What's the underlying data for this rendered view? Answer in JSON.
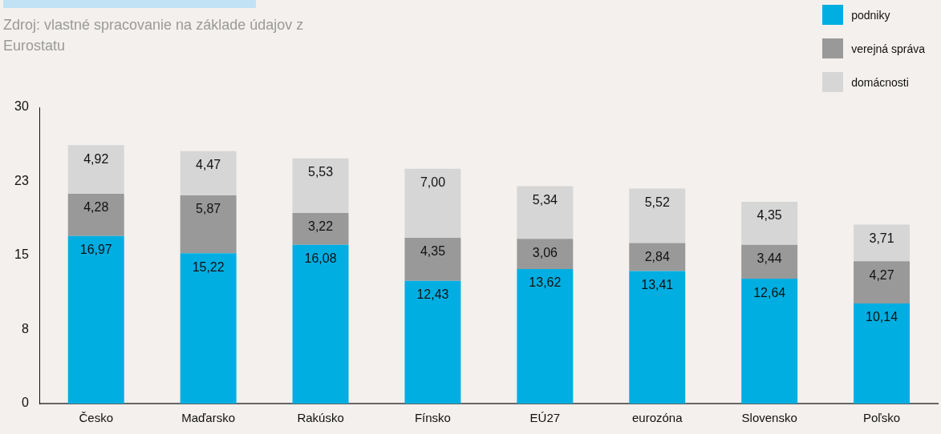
{
  "chart_data": {
    "type": "bar",
    "stacked": true,
    "legend": "top right",
    "grid": false,
    "annotations": [
      "Zdroj: vlastné spracovanie na základe údajov z Eurostatu"
    ],
    "categories": [
      "Česko",
      "Maďarsko",
      "Rakúsko",
      "Fínsko",
      "EÚ27",
      "eurozóna",
      "Slovensko",
      "Poľsko"
    ],
    "ylim": [
      0,
      30
    ],
    "yticks": [
      0,
      {
        "value": 7.5,
        "label": "8"
      },
      15,
      {
        "value": 22.5,
        "label": "23"
      },
      30
    ],
    "series": [
      {
        "name": "podniky",
        "color": "#00aee2",
        "values": [
          16.97,
          15.22,
          16.08,
          12.43,
          13.62,
          13.41,
          12.64,
          10.14
        ],
        "value_labels": [
          "16,97",
          "15,22",
          "16,08",
          "12,43",
          "13,62",
          "13,41",
          "12,64",
          "10,14"
        ]
      },
      {
        "name": "verejná správa",
        "color": "#999999",
        "values": [
          4.28,
          5.87,
          3.22,
          4.35,
          3.06,
          2.84,
          3.44,
          4.27
        ],
        "value_labels": [
          "4,28",
          "5,87",
          "3,22",
          "4,35",
          "3,06",
          "2,84",
          "3,44",
          "4,27"
        ]
      },
      {
        "name": "domácnosti",
        "color": "#d6d6d6",
        "values": [
          4.92,
          4.47,
          5.53,
          7.0,
          5.34,
          5.52,
          4.35,
          3.71
        ],
        "value_labels": [
          "4,92",
          "4,47",
          "5,53",
          "7,00",
          "5,34",
          "5,52",
          "4,35",
          "3,71"
        ]
      }
    ]
  }
}
